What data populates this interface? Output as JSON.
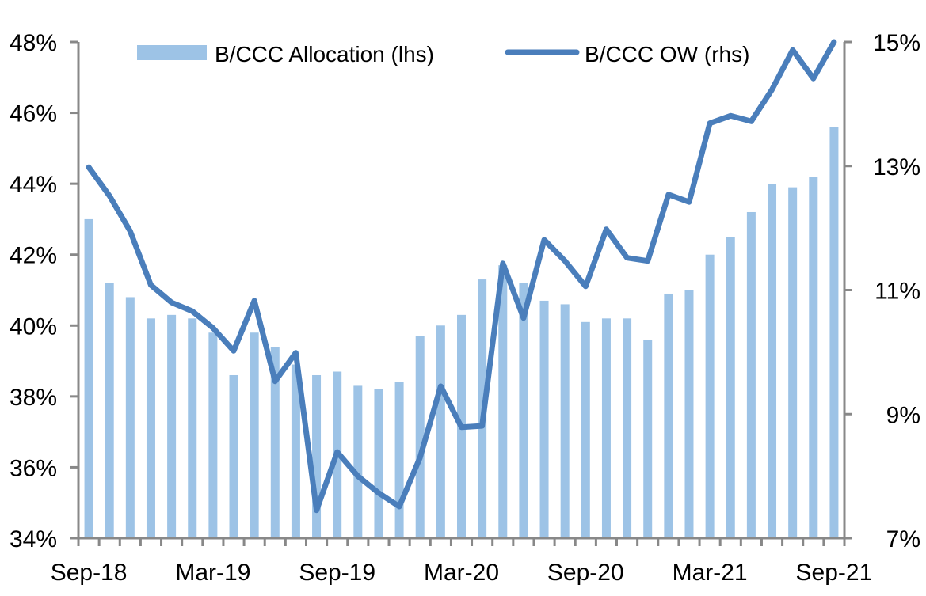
{
  "chart_data": {
    "type": "bar+line",
    "title": "",
    "xlabel": "",
    "ylabel": "",
    "colors": {
      "bars": "#9DC3E6",
      "line": "#4A7EBB",
      "axis": "#888888"
    },
    "legend": {
      "placement": "top",
      "entries": [
        "B/CCC Allocation (lhs)",
        "B/CCC OW (rhs)"
      ]
    },
    "categories": [
      "Sep-18",
      "Oct-18",
      "Nov-18",
      "Dec-18",
      "Jan-19",
      "Feb-19",
      "Mar-19",
      "Apr-19",
      "May-19",
      "Jun-19",
      "Jul-19",
      "Aug-19",
      "Sep-19",
      "Oct-19",
      "Nov-19",
      "Dec-19",
      "Jan-20",
      "Feb-20",
      "Mar-20",
      "Apr-20",
      "May-20",
      "Jun-20",
      "Jul-20",
      "Aug-20",
      "Sep-20",
      "Oct-20",
      "Nov-20",
      "Dec-20",
      "Jan-21",
      "Feb-21",
      "Mar-21",
      "Apr-21",
      "May-21",
      "Jun-21",
      "Jul-21",
      "Aug-21",
      "Sep-21"
    ],
    "x_tick_labels": [
      "Sep-18",
      "Mar-19",
      "Sep-19",
      "Mar-20",
      "Sep-20",
      "Mar-21",
      "Sep-21"
    ],
    "x_tick_label_indices": [
      0,
      6,
      12,
      18,
      24,
      30,
      36
    ],
    "series": [
      {
        "name": "B/CCC Allocation (lhs)",
        "type": "bar",
        "axis": "left",
        "values": [
          43.0,
          41.2,
          40.8,
          40.2,
          40.3,
          40.2,
          39.8,
          38.6,
          39.8,
          39.4,
          38.9,
          38.6,
          38.7,
          38.3,
          38.2,
          38.4,
          39.7,
          40.0,
          40.3,
          41.3,
          41.7,
          41.2,
          40.7,
          40.6,
          40.1,
          40.2,
          40.2,
          39.6,
          40.9,
          41.0,
          42.0,
          42.5,
          43.2,
          44.0,
          43.9,
          44.2,
          45.6
        ]
      },
      {
        "name": "B/CCC OW (rhs)",
        "type": "line",
        "axis": "right",
        "values": [
          12.98,
          12.52,
          11.95,
          11.08,
          10.8,
          10.66,
          10.39,
          10.02,
          10.83,
          9.53,
          9.99,
          7.45,
          8.39,
          8.0,
          7.73,
          7.51,
          8.3,
          9.45,
          8.79,
          8.81,
          11.43,
          10.55,
          11.81,
          11.47,
          11.06,
          11.98,
          11.52,
          11.47,
          12.54,
          12.42,
          13.69,
          13.81,
          13.72,
          14.23,
          14.87,
          14.41,
          15.0
        ]
      }
    ],
    "left_axis": {
      "ylim": [
        34,
        48
      ],
      "ticks": [
        34,
        36,
        38,
        40,
        42,
        44,
        46,
        48
      ],
      "tick_labels": [
        "34%",
        "36%",
        "38%",
        "40%",
        "42%",
        "44%",
        "46%",
        "48%"
      ]
    },
    "right_axis": {
      "ylim": [
        7,
        15
      ],
      "ticks": [
        7,
        9,
        11,
        13,
        15
      ],
      "tick_labels": [
        "7%",
        "9%",
        "11%",
        "13%",
        "15%"
      ]
    },
    "grid": false
  }
}
